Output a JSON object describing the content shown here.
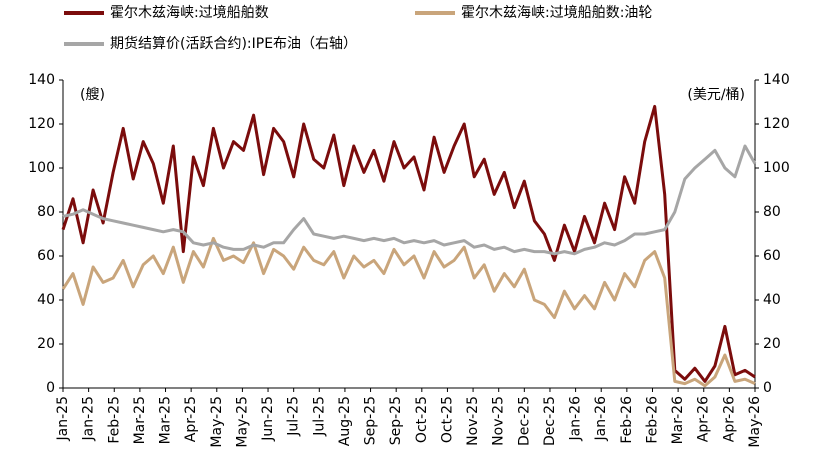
{
  "chart_data": {
    "type": "line",
    "y_unit_label": "(艘)",
    "y2_unit_label": "(美元/桶)",
    "xtick_labels": [
      "Jan-25",
      "Jan-25",
      "Feb-25",
      "Mar-25",
      "Mar-25",
      "Apr-25",
      "May-25",
      "May-25",
      "Jun-25",
      "Jul-25",
      "Jul-25",
      "Aug-25",
      "Sep-25",
      "Sep-25",
      "Oct-25",
      "Oct-25",
      "Nov-25",
      "Nov-25",
      "Dec-25",
      "Dec-25",
      "Jan-26",
      "Jan-26",
      "Feb-26",
      "Feb-26",
      "Mar-26",
      "Apr-26",
      "Apr-26",
      "May-26"
    ],
    "ylim": [
      0,
      140
    ],
    "yticks": [
      0,
      20,
      40,
      60,
      80,
      100,
      120,
      140
    ],
    "y2lim": [
      0,
      140
    ],
    "y2ticks": [
      0,
      20,
      40,
      60,
      80,
      100,
      120,
      140
    ],
    "series": [
      {
        "name": "霍尔木兹海峡:过境船舶数",
        "color": "#7b0c0c",
        "values": [
          72,
          86,
          66,
          90,
          75,
          98,
          118,
          95,
          112,
          102,
          84,
          110,
          62,
          105,
          92,
          118,
          100,
          112,
          108,
          124,
          97,
          118,
          112,
          96,
          120,
          104,
          100,
          115,
          92,
          110,
          98,
          108,
          94,
          112,
          100,
          105,
          90,
          114,
          98,
          110,
          120,
          96,
          104,
          88,
          98,
          82,
          94,
          76,
          70,
          58,
          74,
          62,
          78,
          66,
          84,
          72,
          96,
          84,
          112,
          128,
          88,
          8,
          4,
          9,
          3,
          10,
          28,
          6,
          8,
          5
        ]
      },
      {
        "name": "霍尔木兹海峡:过境船舶数:油轮",
        "color": "#c9a57b",
        "values": [
          45,
          52,
          38,
          55,
          48,
          50,
          58,
          46,
          56,
          60,
          52,
          64,
          48,
          62,
          55,
          68,
          58,
          60,
          57,
          66,
          52,
          63,
          60,
          54,
          64,
          58,
          56,
          62,
          50,
          60,
          55,
          58,
          52,
          63,
          56,
          60,
          50,
          62,
          55,
          58,
          64,
          50,
          56,
          44,
          52,
          46,
          54,
          40,
          38,
          32,
          44,
          36,
          42,
          36,
          48,
          40,
          52,
          46,
          58,
          62,
          50,
          3,
          2,
          4,
          1,
          5,
          15,
          3,
          4,
          2
        ]
      },
      {
        "name": "期货结算价(活跃合约):IPE布油（右轴）",
        "color": "#a6a6a6",
        "axis": "y2",
        "values": [
          78,
          79,
          81,
          79,
          77,
          76,
          75,
          74,
          73,
          72,
          71,
          72,
          71,
          66,
          65,
          66,
          64,
          63,
          63,
          65,
          64,
          66,
          66,
          72,
          77,
          70,
          69,
          68,
          69,
          68,
          67,
          68,
          67,
          68,
          66,
          67,
          66,
          67,
          65,
          66,
          67,
          64,
          65,
          63,
          64,
          62,
          63,
          62,
          62,
          61,
          62,
          61,
          63,
          64,
          66,
          65,
          67,
          70,
          70,
          71,
          72,
          80,
          95,
          100,
          104,
          108,
          100,
          96,
          110,
          102
        ]
      }
    ]
  }
}
